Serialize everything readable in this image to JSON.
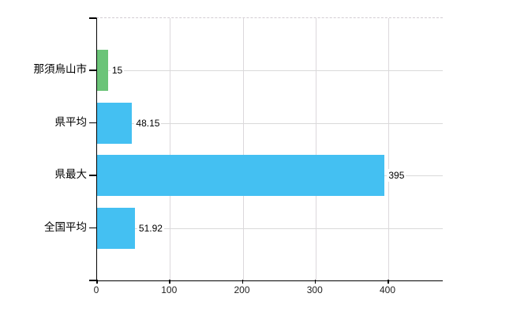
{
  "chart_data": {
    "type": "bar",
    "orientation": "horizontal",
    "title": "",
    "xlabel": "",
    "ylabel": "",
    "categories": [
      "那須烏山市",
      "県平均",
      "県最大",
      "全国平均"
    ],
    "values": [
      15,
      48.15,
      395,
      51.92
    ],
    "value_labels": [
      "15",
      "48.15",
      "395",
      "51.92"
    ],
    "bar_colors": [
      "#6bc478",
      "#44c0f2",
      "#44c0f2",
      "#44c0f2"
    ],
    "x_ticks": [
      0,
      100,
      200,
      300,
      400
    ],
    "x_tick_labels": [
      "0",
      "100",
      "200",
      "300",
      "400"
    ],
    "xlim": [
      0,
      475
    ],
    "grid": true,
    "legend_position": "none",
    "colors": {
      "bar_blue": "#44c0f2",
      "bar_green": "#6bc478",
      "axis": "#000000",
      "gridline": "#d9d9d9",
      "top_border": "#d2ccd2",
      "text": "#000000",
      "background": "#ffffff"
    }
  }
}
